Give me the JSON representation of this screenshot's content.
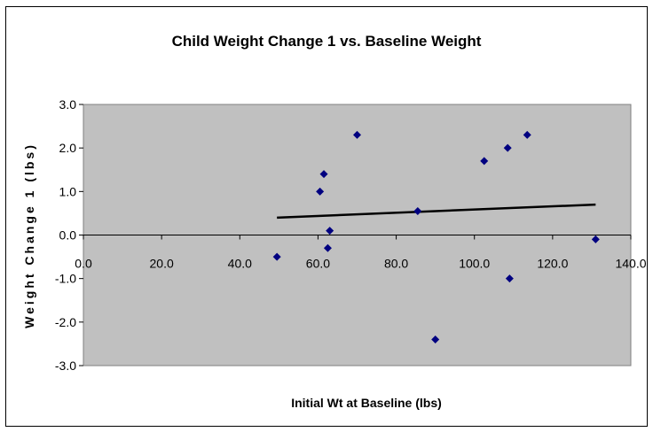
{
  "chart_data": {
    "type": "scatter",
    "title": "Child Weight Change 1 vs. Baseline Weight",
    "xlabel": "Initial Wt at Baseline (lbs)",
    "ylabel": "Weight Change 1 (lbs)",
    "xlim": [
      0,
      140
    ],
    "ylim": [
      -3,
      3
    ],
    "x_ticks": [
      "0.0",
      "20.0",
      "40.0",
      "60.0",
      "80.0",
      "100.0",
      "120.0",
      "140.0"
    ],
    "y_ticks": [
      "3.0",
      "2.0",
      "1.0",
      "0.0",
      "-1.0",
      "-2.0",
      "-3.0"
    ],
    "x_tick_values": [
      0,
      20,
      40,
      60,
      80,
      100,
      120,
      140
    ],
    "y_tick_values": [
      3,
      2,
      1,
      0,
      -1,
      -2,
      -3
    ],
    "points": [
      {
        "x": 49.5,
        "y": -0.5
      },
      {
        "x": 60.5,
        "y": 1.0
      },
      {
        "x": 61.5,
        "y": 1.4
      },
      {
        "x": 62.5,
        "y": -0.3
      },
      {
        "x": 63.0,
        "y": 0.1
      },
      {
        "x": 70.0,
        "y": 2.3
      },
      {
        "x": 85.5,
        "y": 0.55
      },
      {
        "x": 90.0,
        "y": -2.4
      },
      {
        "x": 102.5,
        "y": 1.7
      },
      {
        "x": 108.5,
        "y": 2.0
      },
      {
        "x": 109.0,
        "y": -1.0
      },
      {
        "x": 113.5,
        "y": 2.3
      },
      {
        "x": 131.0,
        "y": -0.1
      }
    ],
    "trendline": {
      "x": [
        49.5,
        131.0
      ],
      "y": [
        0.4,
        0.7
      ]
    },
    "grid": false,
    "legend": "none",
    "colors": {
      "plot_area": "#c0c0c0",
      "marker": "#000080",
      "trendline": "#000000"
    }
  }
}
